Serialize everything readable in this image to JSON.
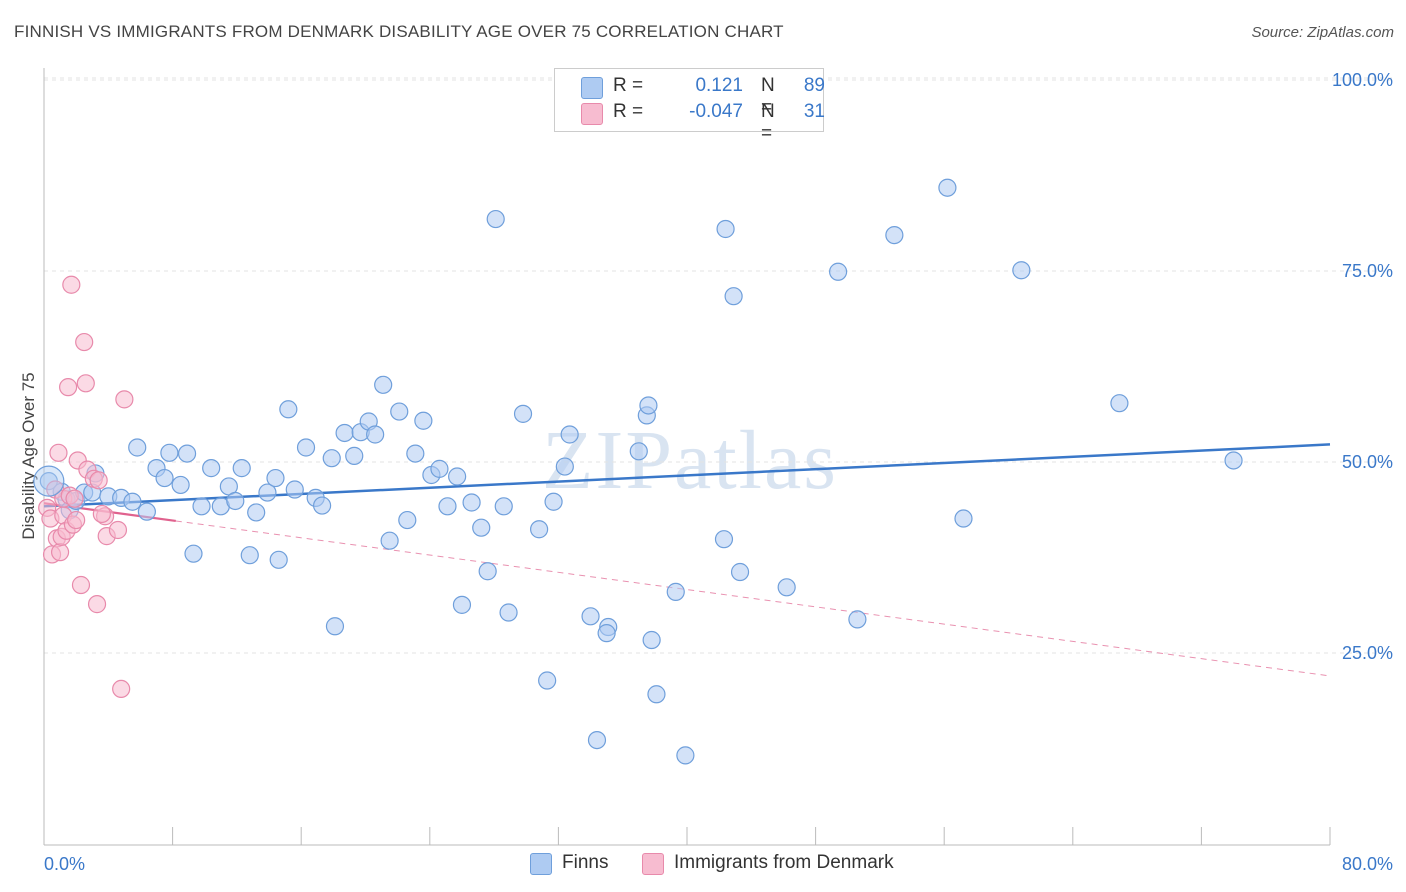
{
  "title": "FINNISH VS IMMIGRANTS FROM DENMARK DISABILITY AGE OVER 75 CORRELATION CHART",
  "source": "Source: ZipAtlas.com",
  "watermark": "ZIPatlas",
  "legend": {
    "series": [
      {
        "r_label": "R =",
        "r_value": "0.121",
        "n_label": "N =",
        "n_value": "89",
        "color": "#aecbf2"
      },
      {
        "r_label": "R =",
        "r_value": "-0.047",
        "n_label": "N =",
        "n_value": "31",
        "color": "#f7bcd0"
      }
    ]
  },
  "bottom_legend": [
    "Finns",
    "Immigrants from Denmark"
  ],
  "chart_data": {
    "type": "scatter",
    "title": "FINNISH VS IMMIGRANTS FROM DENMARK DISABILITY AGE OVER 75 CORRELATION CHART",
    "xlabel": "",
    "ylabel": "Disability Age Over 75",
    "xlim": [
      0,
      80
    ],
    "ylim": [
      0,
      105
    ],
    "x_ticks": [
      "0.0%",
      "80.0%"
    ],
    "y_ticks": [
      {
        "value": 25,
        "label": "25.0%"
      },
      {
        "value": 50,
        "label": "50.0%"
      },
      {
        "value": 75,
        "label": "75.0%"
      },
      {
        "value": 100,
        "label": "100.0%"
      }
    ],
    "grid": true,
    "series": [
      {
        "name": "Finns",
        "color": "#aecbf2",
        "stroke": "#6f9fdb",
        "trend": {
          "x": [
            0,
            80
          ],
          "y": [
            44.2,
            52.3
          ],
          "color": "#3a78c9"
        },
        "points": [
          [
            0.3,
            47.5
          ],
          [
            1.1,
            46.1
          ],
          [
            1.4,
            45.1
          ],
          [
            1.6,
            43.7
          ],
          [
            2.0,
            44.9
          ],
          [
            2.5,
            46.0
          ],
          [
            3.2,
            48.5
          ],
          [
            3.0,
            46.0
          ],
          [
            4.0,
            45.5
          ],
          [
            4.8,
            45.3
          ],
          [
            5.5,
            44.8
          ],
          [
            5.8,
            51.9
          ],
          [
            6.4,
            43.5
          ],
          [
            7.0,
            49.2
          ],
          [
            7.5,
            47.9
          ],
          [
            7.8,
            51.2
          ],
          [
            8.5,
            47.0
          ],
          [
            8.9,
            51.1
          ],
          [
            9.3,
            38.0
          ],
          [
            9.8,
            44.2
          ],
          [
            10.4,
            49.2
          ],
          [
            11.0,
            44.2
          ],
          [
            11.5,
            46.8
          ],
          [
            11.9,
            44.9
          ],
          [
            12.3,
            49.2
          ],
          [
            13.2,
            43.4
          ],
          [
            12.8,
            37.8
          ],
          [
            13.9,
            46.0
          ],
          [
            14.4,
            47.9
          ],
          [
            14.6,
            37.2
          ],
          [
            15.2,
            56.9
          ],
          [
            15.6,
            46.4
          ],
          [
            16.3,
            51.9
          ],
          [
            16.9,
            45.3
          ],
          [
            17.3,
            44.3
          ],
          [
            17.9,
            50.5
          ],
          [
            18.1,
            28.5
          ],
          [
            18.7,
            53.8
          ],
          [
            19.3,
            50.8
          ],
          [
            19.7,
            53.9
          ],
          [
            20.2,
            55.3
          ],
          [
            20.6,
            53.6
          ],
          [
            21.1,
            60.1
          ],
          [
            21.5,
            39.7
          ],
          [
            22.1,
            56.6
          ],
          [
            22.6,
            42.4
          ],
          [
            23.1,
            51.1
          ],
          [
            23.6,
            55.4
          ],
          [
            24.1,
            48.3
          ],
          [
            24.6,
            49.1
          ],
          [
            25.1,
            44.2
          ],
          [
            25.7,
            48.1
          ],
          [
            26.0,
            31.3
          ],
          [
            26.6,
            44.7
          ],
          [
            27.2,
            41.4
          ],
          [
            27.6,
            35.7
          ],
          [
            28.1,
            81.8
          ],
          [
            28.6,
            44.2
          ],
          [
            28.9,
            30.3
          ],
          [
            29.8,
            56.3
          ],
          [
            30.8,
            41.2
          ],
          [
            31.3,
            21.4
          ],
          [
            31.7,
            44.8
          ],
          [
            32.4,
            49.4
          ],
          [
            32.7,
            53.6
          ],
          [
            34.0,
            29.8
          ],
          [
            34.4,
            13.6
          ],
          [
            35.1,
            28.4
          ],
          [
            35.0,
            27.6
          ],
          [
            37.0,
            51.4
          ],
          [
            37.5,
            56.1
          ],
          [
            37.6,
            57.4
          ],
          [
            37.8,
            26.7
          ],
          [
            38.1,
            19.6
          ],
          [
            39.3,
            33.0
          ],
          [
            39.9,
            11.6
          ],
          [
            42.3,
            39.9
          ],
          [
            42.4,
            80.5
          ],
          [
            42.9,
            71.7
          ],
          [
            43.3,
            35.6
          ],
          [
            46.2,
            33.6
          ],
          [
            49.4,
            74.9
          ],
          [
            50.6,
            29.4
          ],
          [
            52.9,
            79.7
          ],
          [
            56.2,
            85.9
          ],
          [
            57.2,
            42.6
          ],
          [
            60.8,
            75.1
          ],
          [
            66.9,
            57.7
          ],
          [
            74.0,
            50.2
          ]
        ]
      },
      {
        "name": "Immigrants from Denmark",
        "color": "#f7bcd0",
        "stroke": "#e88aab",
        "trend": {
          "x": [
            0,
            80
          ],
          "y": [
            44.6,
            22.0
          ],
          "solid_until": 8.2,
          "color": "#e0628e"
        },
        "points": [
          [
            0.2,
            44.0
          ],
          [
            0.4,
            42.6
          ],
          [
            0.5,
            37.9
          ],
          [
            0.7,
            46.4
          ],
          [
            0.8,
            40.0
          ],
          [
            0.9,
            51.2
          ],
          [
            1.0,
            38.2
          ],
          [
            1.1,
            40.2
          ],
          [
            1.2,
            45.2
          ],
          [
            1.2,
            43.0
          ],
          [
            1.4,
            41.0
          ],
          [
            1.5,
            59.8
          ],
          [
            1.6,
            45.6
          ],
          [
            1.7,
            73.2
          ],
          [
            1.8,
            41.8
          ],
          [
            1.9,
            45.2
          ],
          [
            2.0,
            42.4
          ],
          [
            2.1,
            50.2
          ],
          [
            2.3,
            33.9
          ],
          [
            2.5,
            65.7
          ],
          [
            2.6,
            60.3
          ],
          [
            2.7,
            49.0
          ],
          [
            3.1,
            47.8
          ],
          [
            3.3,
            31.4
          ],
          [
            3.4,
            47.6
          ],
          [
            3.8,
            42.9
          ],
          [
            3.9,
            40.3
          ],
          [
            4.6,
            41.1
          ],
          [
            4.8,
            20.3
          ],
          [
            5.0,
            58.2
          ],
          [
            3.6,
            43.2
          ]
        ]
      }
    ]
  }
}
